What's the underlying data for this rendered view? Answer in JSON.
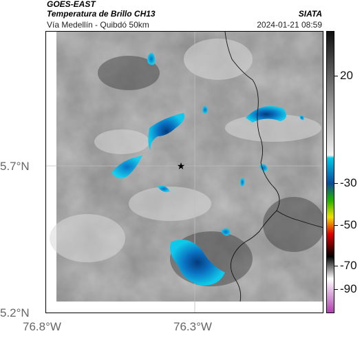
{
  "header": {
    "satellite": "GOES-EAST",
    "product": "Temperatura de Brillo CH13",
    "route": "Vía Medellín - Quibdó 50km",
    "org": "SIATA",
    "datetime": "2024-01-21 08:59"
  },
  "axes": {
    "y_ticks": [
      "5.7°N",
      "5.2°N"
    ],
    "x_ticks": [
      "76.8°W",
      "76.3°W"
    ]
  },
  "colorbar": {
    "ticks": [
      "20",
      "-30",
      "-50",
      "-70",
      "-90"
    ],
    "colors": {
      "gray_light": "#f2f2f2",
      "gray_dark": "#101010",
      "cyan": "#00c8e6",
      "blue": "#0a4a9a",
      "green": "#22b000",
      "yellow": "#f0e000",
      "red": "#e00000",
      "black": "#000000",
      "magenta": "#b040b0"
    }
  },
  "map": {
    "marker_icon": "star-icon",
    "background_gray": "#8a8a8a",
    "cloud_cold": "#00b4e6"
  }
}
